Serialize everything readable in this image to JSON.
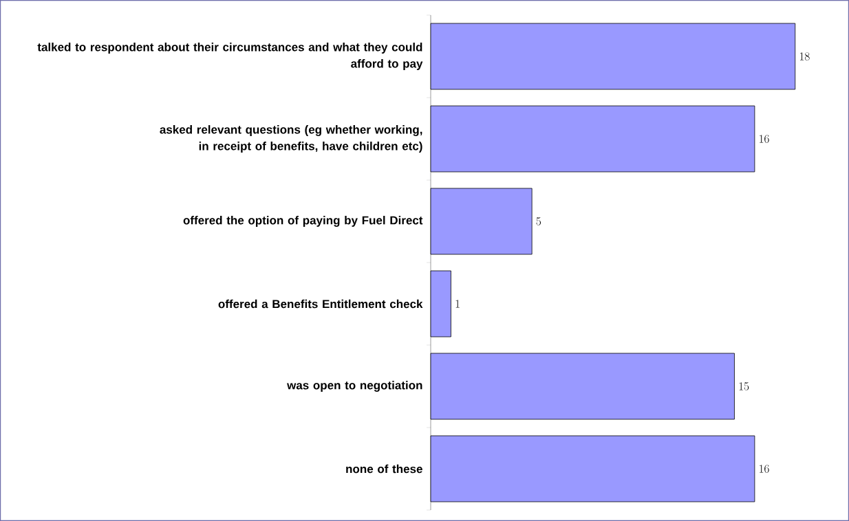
{
  "chart_data": {
    "type": "bar",
    "orientation": "horizontal",
    "data_labels": true,
    "color": "#9999ff",
    "categories": [
      "talked to respondent about their circumstances and what they could afford to pay",
      "asked relevant questions (eg whether working, in receipt of benefits, have children etc)",
      "offered the option of paying by Fuel Direct",
      "offered a Benefits Entitlement check",
      "was open to negotiation",
      "none of these"
    ],
    "values": [
      18,
      16,
      5,
      1,
      15,
      16
    ]
  }
}
